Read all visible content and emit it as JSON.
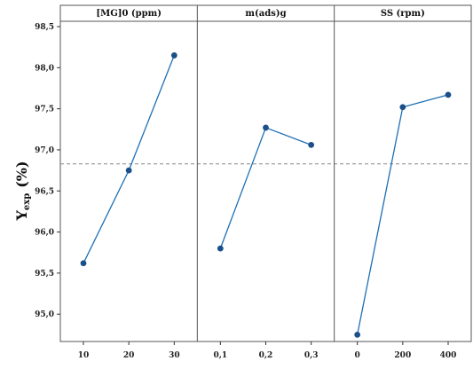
{
  "chart_data": {
    "type": "line",
    "ylabel_main": "Y",
    "ylabel_sub": "exp",
    "ylabel_unit": "(%)",
    "ylim": [
      94.7,
      98.5
    ],
    "yticks": [
      95.0,
      95.5,
      96.0,
      96.5,
      97.0,
      97.5,
      98.0,
      98.5
    ],
    "ytick_labels": [
      "95,0",
      "95,5",
      "96,0",
      "96,5",
      "97,0",
      "97,5",
      "98,0",
      "98,5"
    ],
    "reference_line": 96.83,
    "line_color": "#1f6fb4",
    "marker_color": "#1a4f8a",
    "panels": [
      {
        "title": "[MG]0 (ppm)",
        "categories": [
          "10",
          "20",
          "30"
        ],
        "values": [
          95.62,
          96.75,
          98.15
        ]
      },
      {
        "title": "m(ads)g",
        "categories": [
          "0,1",
          "0,2",
          "0,3"
        ],
        "values": [
          95.8,
          97.27,
          97.06
        ]
      },
      {
        "title": "SS (rpm)",
        "categories": [
          "0",
          "200",
          "400"
        ],
        "values": [
          94.75,
          97.52,
          97.67
        ]
      }
    ]
  }
}
